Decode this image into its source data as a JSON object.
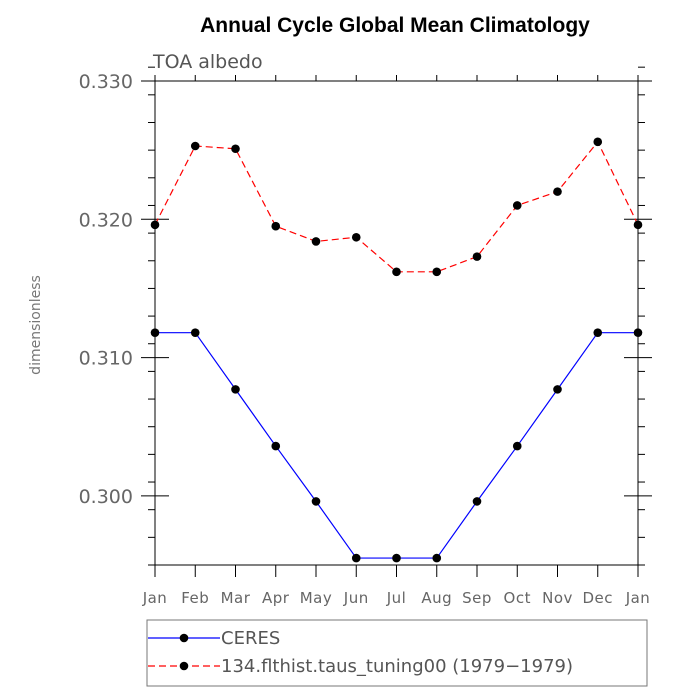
{
  "chart_data": {
    "type": "line",
    "title": "Annual Cycle Global Mean Climatology",
    "subtitle": "TOA albedo",
    "xlabel": "",
    "ylabel": "dimensionless",
    "categories": [
      "Jan",
      "Feb",
      "Mar",
      "Apr",
      "May",
      "Jun",
      "Jul",
      "Aug",
      "Sep",
      "Oct",
      "Nov",
      "Dec",
      "Jan"
    ],
    "ylim": [
      0.295,
      0.33
    ],
    "yticks": [
      {
        "value": 0.3,
        "label": "0.300"
      },
      {
        "value": 0.31,
        "label": "0.310"
      },
      {
        "value": 0.32,
        "label": "0.320"
      },
      {
        "value": 0.33,
        "label": "0.330"
      }
    ],
    "series": [
      {
        "name": "CERES",
        "color": "#0000ff",
        "dash": "solid",
        "values": [
          0.3118,
          0.3118,
          0.3077,
          0.3036,
          0.2996,
          0.2955,
          0.2955,
          0.2955,
          0.2996,
          0.3036,
          0.3077,
          0.3118,
          0.3118
        ]
      },
      {
        "name": "134.flthist.taus_tuning00 (1979−1979)",
        "color": "#ff0000",
        "dash": "dashed",
        "values": [
          0.3196,
          0.3253,
          0.3251,
          0.3195,
          0.3184,
          0.3187,
          0.3162,
          0.3162,
          0.3173,
          0.321,
          0.322,
          0.3256,
          0.3196
        ]
      }
    ],
    "legend": "bottom"
  }
}
